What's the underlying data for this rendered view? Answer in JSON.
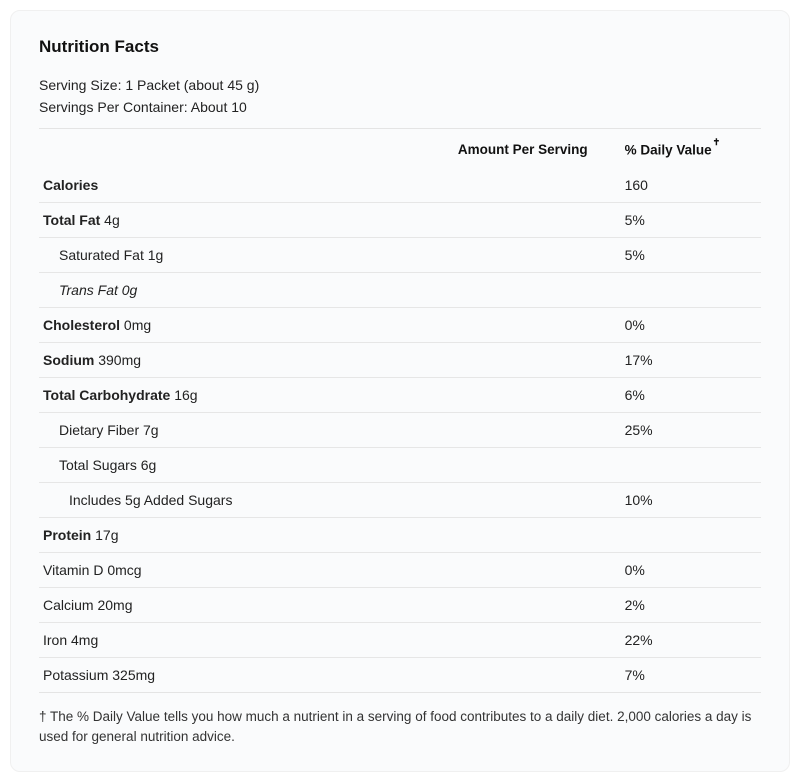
{
  "title": "Nutrition Facts",
  "serving_size_label": "Serving Size:",
  "serving_size_value": "1 Packet (about 45 g)",
  "servings_per_container_label": "Servings Per Container:",
  "servings_per_container_value": "About 10",
  "header_amount": "Amount Per Serving",
  "header_dv": "% Daily Value",
  "header_dv_dagger": "✝",
  "rows": [
    {
      "label": "Calories",
      "bold": true,
      "indent": 0,
      "italic": false,
      "amount": "",
      "dv": "160"
    },
    {
      "label": "Total Fat",
      "value": " 4g",
      "bold": true,
      "indent": 0,
      "italic": false,
      "amount": "",
      "dv": "5%"
    },
    {
      "label": "Saturated Fat 1g",
      "bold": false,
      "indent": 1,
      "italic": false,
      "amount": "",
      "dv": "5%"
    },
    {
      "label": "Trans Fat 0g",
      "bold": false,
      "indent": 1,
      "italic": true,
      "amount": "",
      "dv": ""
    },
    {
      "label": "Cholesterol",
      "value": " 0mg",
      "bold": true,
      "indent": 0,
      "italic": false,
      "amount": "",
      "dv": "0%"
    },
    {
      "label": "Sodium",
      "value": " 390mg",
      "bold": true,
      "indent": 0,
      "italic": false,
      "amount": "",
      "dv": "17%"
    },
    {
      "label": "Total Carbohydrate",
      "value": " 16g",
      "bold": true,
      "indent": 0,
      "italic": false,
      "amount": "",
      "dv": "6%"
    },
    {
      "label": "Dietary Fiber 7g",
      "bold": false,
      "indent": 1,
      "italic": false,
      "amount": "",
      "dv": "25%"
    },
    {
      "label": "Total Sugars 6g",
      "bold": false,
      "indent": 1,
      "italic": false,
      "amount": "",
      "dv": ""
    },
    {
      "label": "Includes 5g Added Sugars",
      "bold": false,
      "indent": 2,
      "italic": false,
      "amount": "",
      "dv": "10%"
    },
    {
      "label": "Protein",
      "value": " 17g",
      "bold": true,
      "indent": 0,
      "italic": false,
      "amount": "",
      "dv": ""
    },
    {
      "label": "Vitamin D 0mcg",
      "bold": false,
      "indent": 0,
      "italic": false,
      "amount": "",
      "dv": "0%"
    },
    {
      "label": "Calcium 20mg",
      "bold": false,
      "indent": 0,
      "italic": false,
      "amount": "",
      "dv": "2%"
    },
    {
      "label": "Iron 4mg",
      "bold": false,
      "indent": 0,
      "italic": false,
      "amount": "",
      "dv": "22%"
    },
    {
      "label": "Potassium 325mg",
      "bold": false,
      "indent": 0,
      "italic": false,
      "amount": "",
      "dv": "7%"
    }
  ],
  "footnote": "† The % Daily Value tells you how much a nutrient in a serving of food contributes to a daily diet. 2,000 calories a day is used for general nutrition advice.",
  "colors": {
    "card_bg": "#fafbfc",
    "border": "#e6e6e6",
    "text": "#222"
  }
}
